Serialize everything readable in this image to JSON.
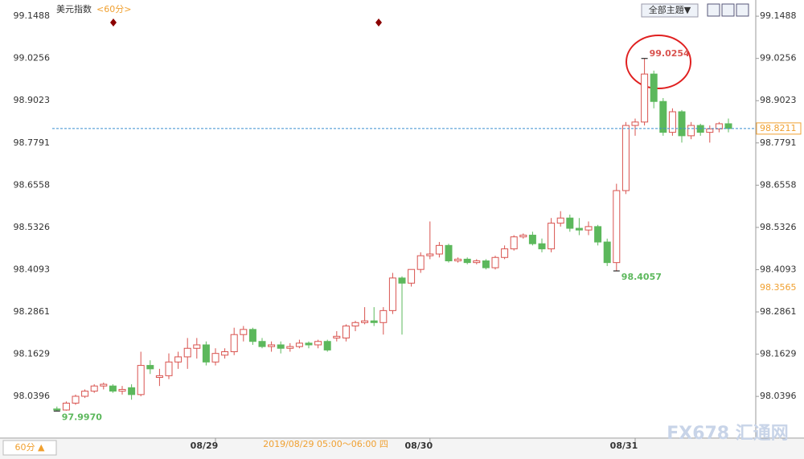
{
  "chart_data": {
    "type": "candlestick",
    "title": "美元指数",
    "subtitle": "<60分>",
    "toolbar": "全部主題▼",
    "period": "60分 ▲",
    "crosshair_label": "2019/08/29 05:00～06:00 四",
    "watermark": "FX678 汇通网",
    "colors": {
      "up": "#d9534f",
      "down": "#5cb85c",
      "last": "#f0a030",
      "line": "#3a8fd0"
    },
    "categories": [
      null,
      null,
      null,
      null,
      null,
      null,
      null,
      null,
      null,
      null,
      null,
      null,
      null,
      null,
      null,
      null,
      null,
      "08/29",
      null,
      null,
      null,
      null,
      null,
      null,
      null,
      null,
      null,
      null,
      null,
      null,
      null,
      null,
      null,
      null,
      null,
      null,
      null,
      null,
      null,
      null,
      "08/30",
      null,
      null,
      null,
      null,
      null,
      null,
      null,
      null,
      null,
      null,
      null,
      null,
      null,
      null,
      null,
      null,
      null,
      null,
      null,
      null,
      null,
      "08/31",
      null,
      null,
      null,
      null,
      null,
      null,
      null,
      null,
      null,
      null
    ],
    "open": [
      98.003,
      98.0,
      98.02,
      98.04,
      98.055,
      98.07,
      98.07,
      98.055,
      98.065,
      98.045,
      98.13,
      98.095,
      98.1,
      98.14,
      98.155,
      98.18,
      98.19,
      98.14,
      98.16,
      98.17,
      98.22,
      98.235,
      98.2,
      98.185,
      98.19,
      98.18,
      98.185,
      98.195,
      98.19,
      98.2,
      98.21,
      98.21,
      98.245,
      98.255,
      98.26,
      98.255,
      98.29,
      98.385,
      98.37,
      98.41,
      98.45,
      98.455,
      98.48,
      98.435,
      98.44,
      98.43,
      98.435,
      98.415,
      98.445,
      98.47,
      98.505,
      98.51,
      98.485,
      98.47,
      98.545,
      98.56,
      98.53,
      98.525,
      98.535,
      98.49,
      98.43,
      98.64,
      98.83,
      98.84,
      98.98,
      98.9,
      98.81,
      98.87,
      98.8,
      98.83,
      98.81,
      98.82,
      98.835
    ],
    "high": [
      98.01,
      98.025,
      98.045,
      98.06,
      98.075,
      98.08,
      98.075,
      98.07,
      98.075,
      98.17,
      98.145,
      98.12,
      98.165,
      98.17,
      98.21,
      98.21,
      98.2,
      98.18,
      98.18,
      98.24,
      98.245,
      98.24,
      98.21,
      98.2,
      98.2,
      98.195,
      98.205,
      98.2,
      98.205,
      98.205,
      98.23,
      98.25,
      98.26,
      98.3,
      98.3,
      98.3,
      98.4,
      98.39,
      98.41,
      98.46,
      98.55,
      98.49,
      98.485,
      98.445,
      98.445,
      98.44,
      98.44,
      98.45,
      98.48,
      98.51,
      98.515,
      98.52,
      98.5,
      98.56,
      98.58,
      98.57,
      98.56,
      98.55,
      98.54,
      98.5,
      98.66,
      98.84,
      98.85,
      99.0254,
      98.99,
      98.91,
      98.88,
      98.875,
      98.84,
      98.835,
      98.83,
      98.84,
      98.85
    ],
    "low": [
      97.997,
      97.998,
      98.015,
      98.035,
      98.05,
      98.06,
      98.05,
      98.045,
      98.03,
      98.04,
      98.105,
      98.07,
      98.09,
      98.12,
      98.12,
      98.15,
      98.13,
      98.13,
      98.15,
      98.16,
      98.2,
      98.19,
      98.18,
      98.17,
      98.165,
      98.17,
      98.18,
      98.18,
      98.18,
      98.17,
      98.2,
      98.2,
      98.23,
      98.25,
      98.245,
      98.22,
      98.28,
      98.22,
      98.36,
      98.4,
      98.44,
      98.445,
      98.43,
      98.43,
      98.425,
      98.425,
      98.41,
      98.41,
      98.44,
      98.465,
      98.5,
      98.48,
      98.46,
      98.46,
      98.535,
      98.52,
      98.51,
      98.51,
      98.48,
      98.42,
      98.4057,
      98.63,
      98.8,
      98.83,
      98.88,
      98.8,
      98.8,
      98.78,
      98.79,
      98.8,
      98.78,
      98.81,
      98.81
    ],
    "close": [
      98.0,
      98.02,
      98.04,
      98.055,
      98.07,
      98.075,
      98.055,
      98.06,
      98.045,
      98.13,
      98.12,
      98.1,
      98.14,
      98.155,
      98.18,
      98.19,
      98.14,
      98.165,
      98.17,
      98.22,
      98.235,
      98.2,
      98.185,
      98.19,
      98.18,
      98.185,
      98.195,
      98.19,
      98.2,
      98.175,
      98.215,
      98.245,
      98.255,
      98.26,
      98.255,
      98.29,
      98.385,
      98.37,
      98.41,
      98.45,
      98.455,
      98.48,
      98.435,
      98.44,
      98.43,
      98.435,
      98.415,
      98.445,
      98.47,
      98.505,
      98.51,
      98.485,
      98.47,
      98.545,
      98.56,
      98.53,
      98.525,
      98.535,
      98.49,
      98.43,
      98.64,
      98.83,
      98.84,
      98.98,
      98.9,
      98.81,
      98.87,
      98.8,
      98.83,
      98.81,
      98.82,
      98.835,
      98.8211
    ],
    "ylim": [
      97.918,
      99.196
    ],
    "yticks": [
      98.0396,
      98.1629,
      98.2861,
      98.4093,
      98.5326,
      98.6558,
      98.7791,
      98.9023,
      99.0256,
      99.1488
    ],
    "last_price": 98.8211,
    "indicator_price": 98.3565,
    "annotations": [
      {
        "label": "99.0254",
        "value": 99.0254,
        "index": 63,
        "color": "#d9534f"
      },
      {
        "label": "98.4057",
        "value": 98.4057,
        "index": 60,
        "color": "#5cb85c"
      },
      {
        "label": "97.9970",
        "value": 97.997,
        "index": 0,
        "color": "#5cb85c"
      }
    ]
  }
}
